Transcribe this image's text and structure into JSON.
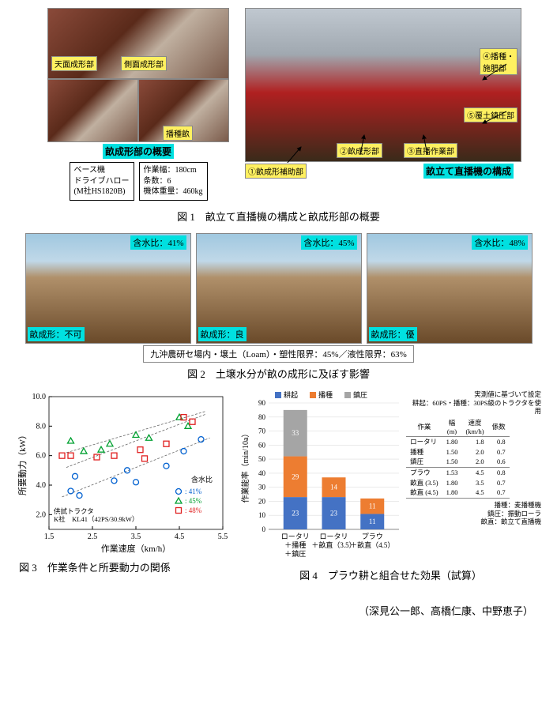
{
  "fig1": {
    "left_labels": {
      "top_surface": "天面成形部",
      "side_surface": "側面成形部",
      "seed_ridge": "播種畝",
      "subtitle": "畝成形部の概要"
    },
    "right_labels": {
      "part1": "①畝成形補助部",
      "part2": "②畝成形部",
      "part3": "③直播作業部",
      "part4": "④播種・\n施肥部",
      "part5": "⑤覆土鎮圧部",
      "subtitle": "畝立て直播機の構成"
    },
    "spec_boxes": {
      "base": "ベース機\nドライブハロー\n(M社HS1820B)",
      "work": "作業幅：180cm\n条数：6\n機体重量：460kg"
    },
    "caption": "図 1　畝立て直播機の構成と畝成形部の概要"
  },
  "fig2": {
    "panels": [
      {
        "top": "含水比：41%",
        "bottom": "畝成形：不可"
      },
      {
        "top": "含水比：45%",
        "bottom": "畝成形：良"
      },
      {
        "top": "含水比：48%",
        "bottom": "畝成形：優"
      }
    ],
    "footer": "九沖農研セ場内・壌土（Loam）・塑性限界：45%／液性限界：63%",
    "caption": "図 2　土壌水分が畝の成形に及ぼす影響"
  },
  "fig3": {
    "ylabel": "所要動力（kW）",
    "xlabel": "作業速度（km/h）",
    "yticks": [
      2.0,
      4.0,
      6.0,
      8.0,
      10.0
    ],
    "xticks": [
      1.5,
      2.5,
      3.5,
      4.5,
      5.5
    ],
    "legend_title": "含水比",
    "legend_items": [
      {
        "marker": "circle",
        "color": "#0060d0",
        "label": ": 41%"
      },
      {
        "marker": "triangle",
        "color": "#00a030",
        "label": ": 45%"
      },
      {
        "marker": "square",
        "color": "#e02020",
        "label": ": 48%"
      }
    ],
    "tractor_note": "供試トラクタ\nK社　KL41（42PS/30.9kW）",
    "series": {
      "s41": [
        [
          2.0,
          3.6
        ],
        [
          2.1,
          4.6
        ],
        [
          2.2,
          3.3
        ],
        [
          3.0,
          4.3
        ],
        [
          3.3,
          5.0
        ],
        [
          3.5,
          4.2
        ],
        [
          4.2,
          5.3
        ],
        [
          4.6,
          6.3
        ],
        [
          5.0,
          7.1
        ]
      ],
      "s45": [
        [
          2.0,
          7.0
        ],
        [
          2.3,
          6.3
        ],
        [
          2.7,
          6.4
        ],
        [
          2.9,
          6.8
        ],
        [
          3.5,
          7.4
        ],
        [
          3.8,
          7.2
        ],
        [
          4.5,
          8.6
        ],
        [
          4.7,
          8.0
        ]
      ],
      "s48": [
        [
          1.8,
          6.0
        ],
        [
          2.0,
          6.0
        ],
        [
          2.6,
          5.9
        ],
        [
          3.0,
          6.0
        ],
        [
          3.6,
          6.4
        ],
        [
          3.7,
          5.8
        ],
        [
          4.2,
          6.8
        ],
        [
          4.6,
          8.6
        ],
        [
          4.8,
          8.3
        ]
      ]
    },
    "trendlines": [
      [
        [
          1.8,
          3.2
        ],
        [
          5.2,
          7.2
        ]
      ],
      [
        [
          1.9,
          5.2
        ],
        [
          5.1,
          8.8
        ]
      ],
      [
        [
          1.9,
          6.2
        ],
        [
          5.1,
          9.0
        ]
      ]
    ],
    "xlim": [
      1.5,
      5.5
    ],
    "ylim": [
      1.0,
      10.0
    ],
    "marker_colors": {
      "s41": "#0060d0",
      "s45": "#00a030",
      "s48": "#e02020"
    },
    "caption": "図 3　作業条件と所要動力の関係"
  },
  "fig4": {
    "ylabel": "作業能率（min/10a）",
    "yticks": [
      0,
      10,
      20,
      30,
      40,
      50,
      60,
      70,
      80,
      90
    ],
    "categories": [
      "ロータリ\n＋播種\n＋鎮圧",
      "ロータリ\n＋畝直（3.5）",
      "プラウ\n＋畝直（4.5）"
    ],
    "legend": [
      {
        "label": "耕起",
        "color": "#4472c4"
      },
      {
        "label": "播種",
        "color": "#ed7d31"
      },
      {
        "label": "鎮圧",
        "color": "#a5a5a5"
      }
    ],
    "stacks": [
      [
        {
          "v": 23,
          "c": "#4472c4"
        },
        {
          "v": 29,
          "c": "#ed7d31"
        },
        {
          "v": 33,
          "c": "#a5a5a5"
        }
      ],
      [
        {
          "v": 23,
          "c": "#4472c4"
        },
        {
          "v": 14,
          "c": "#ed7d31"
        }
      ],
      [
        {
          "v": 11,
          "c": "#4472c4"
        },
        {
          "v": 11,
          "c": "#ed7d31"
        }
      ]
    ],
    "ylim": [
      0,
      90
    ],
    "table": {
      "header_note": "実測値に基づいて設定\n耕起：60PS・播種：30PS級のトラクタを使用",
      "columns": [
        "作業",
        "幅\n(m)",
        "速度\n(km/h)",
        "係数"
      ],
      "rows": [
        [
          "ロータリ",
          "1.80",
          "1.8",
          "0.8"
        ],
        [
          "播種",
          "1.50",
          "2.0",
          "0.7"
        ],
        [
          "鎮圧",
          "1.50",
          "2.0",
          "0.6"
        ],
        [
          "プラウ",
          "1.53",
          "4.5",
          "0.8"
        ],
        [
          "畝直 (3.5)",
          "1.80",
          "3.5",
          "0.7"
        ],
        [
          "畝直 (4.5)",
          "1.80",
          "4.5",
          "0.7"
        ]
      ],
      "footer": "播種：麦播種機\n鎮圧：振動ローラ\n畝直：畝立て直播機"
    },
    "caption": "図 4　プラウ耕と組合せた効果（試算）"
  },
  "authors": "（深見公一郎、高橋仁康、中野恵子）"
}
